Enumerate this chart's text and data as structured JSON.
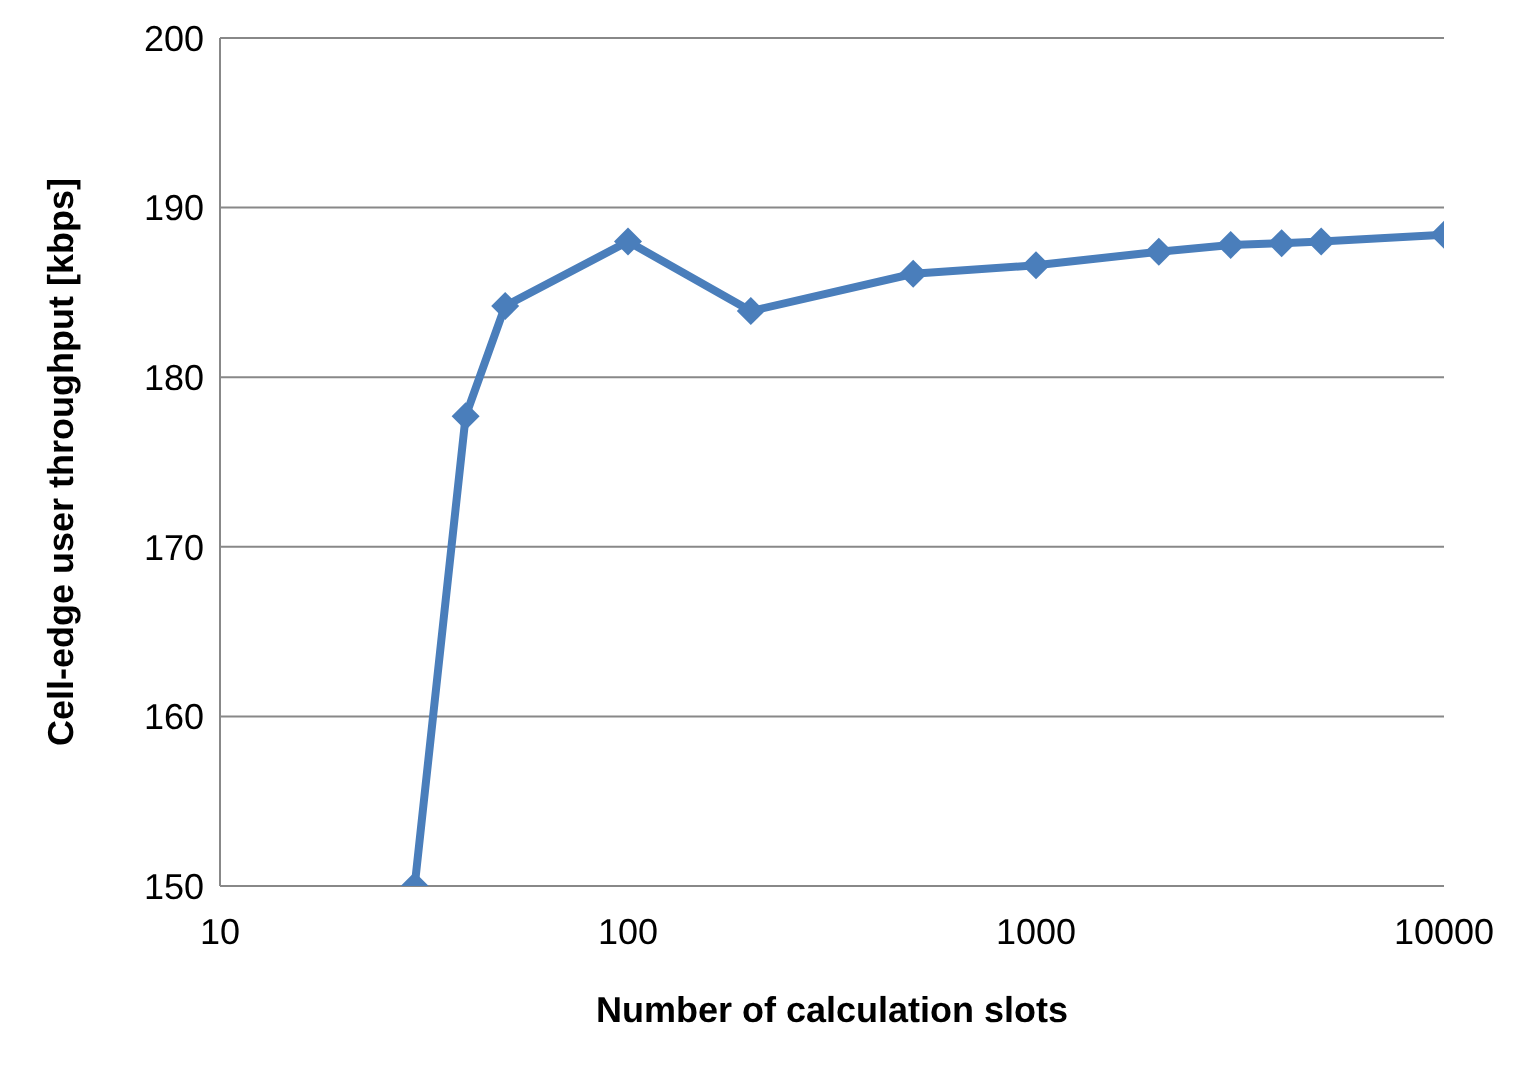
{
  "chart_data": {
    "type": "line",
    "xlabel": "Number of calculation slots",
    "ylabel": "Cell-edge user throughput [kbps]",
    "x": [
      30,
      40,
      50,
      100,
      200,
      500,
      1000,
      2000,
      3000,
      4000,
      5000,
      10000
    ],
    "series": [
      {
        "color": "#4a7ebb",
        "values": [
          150,
          177.7,
          184.2,
          188,
          183.9,
          186.1,
          186.6,
          187.4,
          187.8,
          187.9,
          188,
          188.4
        ]
      }
    ],
    "log": "x",
    "xlim": [
      10,
      10000
    ],
    "xticks": [
      10,
      100,
      1000,
      10000
    ],
    "ylim": [
      150,
      200
    ],
    "yticks": [
      150,
      160,
      170,
      180,
      190,
      200
    ],
    "grid": "y",
    "marker": "diamond",
    "line_style": "solid",
    "legend": false
  }
}
